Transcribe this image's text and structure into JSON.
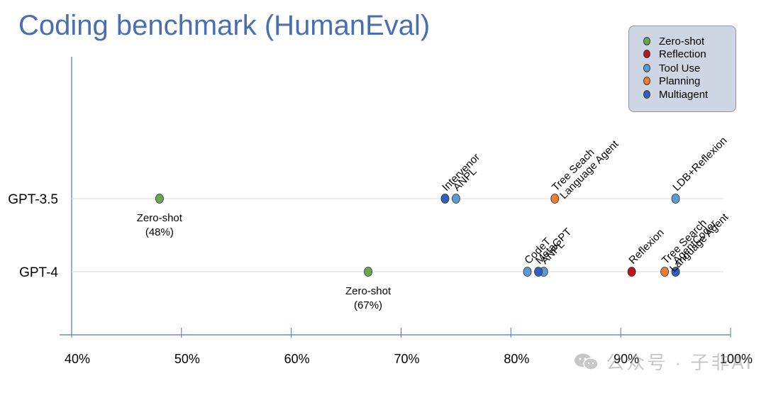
{
  "title": "Coding benchmark (HumanEval)",
  "chart_data": {
    "type": "scatter",
    "title": "Coding benchmark (HumanEval)",
    "xlabel": "",
    "ylabel": "",
    "xlim": [
      40,
      100
    ],
    "x_ticks": [
      "40%",
      "50%",
      "60%",
      "70%",
      "80%",
      "90%",
      "100%"
    ],
    "categories": [
      "GPT-3.5",
      "GPT-4"
    ],
    "grid": false,
    "legend_position": "top-right",
    "series": [
      {
        "name": "Zero-shot",
        "color": "#6aa84f",
        "points": [
          {
            "category": "GPT-3.5",
            "x": 48
          },
          {
            "category": "GPT-4",
            "x": 67
          }
        ]
      },
      {
        "name": "Reflection",
        "color": "#c0121c",
        "points": [
          {
            "category": "GPT-4",
            "x": 91
          }
        ]
      },
      {
        "name": "Tool Use",
        "color": "#5b9bd5",
        "points": [
          {
            "category": "GPT-3.5",
            "x": 75
          },
          {
            "category": "GPT-3.5",
            "x": 95
          },
          {
            "category": "GPT-4",
            "x": 81.5
          },
          {
            "category": "GPT-4",
            "x": 83
          }
        ]
      },
      {
        "name": "Planning",
        "color": "#ed7d31",
        "points": [
          {
            "category": "GPT-3.5",
            "x": 84
          },
          {
            "category": "GPT-4",
            "x": 94
          }
        ]
      },
      {
        "name": "Multiagent",
        "color": "#2f5fbf",
        "points": [
          {
            "category": "GPT-3.5",
            "x": 74
          },
          {
            "category": "GPT-4",
            "x": 82.5
          },
          {
            "category": "GPT-4",
            "x": 95
          }
        ]
      }
    ],
    "annotations": [
      {
        "category": "GPT-3.5",
        "x": 74,
        "lines": [
          "Intervenor"
        ],
        "style": "rotated"
      },
      {
        "category": "GPT-3.5",
        "x": 75,
        "lines": [
          "ANPL"
        ],
        "style": "rotated"
      },
      {
        "category": "GPT-3.5",
        "x": 84,
        "lines": [
          "Language Agent",
          "Tree Seach"
        ],
        "style": "rotated"
      },
      {
        "category": "GPT-3.5",
        "x": 95,
        "lines": [
          "LDB+Reflexion"
        ],
        "style": "rotated"
      },
      {
        "category": "GPT-3.5",
        "x": 48,
        "lines": [
          "Zero-shot",
          "(48%)"
        ],
        "style": "below"
      },
      {
        "category": "GPT-4",
        "x": 67,
        "lines": [
          "Zero-shot",
          "(67%)"
        ],
        "style": "below"
      },
      {
        "category": "GPT-4",
        "x": 81.5,
        "lines": [
          "CodeT"
        ],
        "style": "rotated"
      },
      {
        "category": "GPT-4",
        "x": 82.5,
        "lines": [
          "MetaGPT"
        ],
        "style": "rotated"
      },
      {
        "category": "GPT-4",
        "x": 83,
        "lines": [
          "ANPL"
        ],
        "style": "rotated"
      },
      {
        "category": "GPT-4",
        "x": 91,
        "lines": [
          "Reflexion"
        ],
        "style": "rotated"
      },
      {
        "category": "GPT-4",
        "x": 94,
        "lines": [
          "Language Agent",
          "Tree Search"
        ],
        "style": "rotated"
      },
      {
        "category": "GPT-4",
        "x": 95,
        "lines": [
          "AgentCoder"
        ],
        "style": "rotated"
      }
    ]
  },
  "legend": [
    {
      "label": "Zero-shot",
      "color": "#6aa84f"
    },
    {
      "label": "Reflection",
      "color": "#c0121c"
    },
    {
      "label": "Tool Use",
      "color": "#5b9bd5"
    },
    {
      "label": "Planning",
      "color": "#ed7d31"
    },
    {
      "label": "Multiagent",
      "color": "#2f5fbf"
    }
  ],
  "watermark": {
    "text": "公众号 · 子非AI",
    "icon": "wechat-icon"
  }
}
